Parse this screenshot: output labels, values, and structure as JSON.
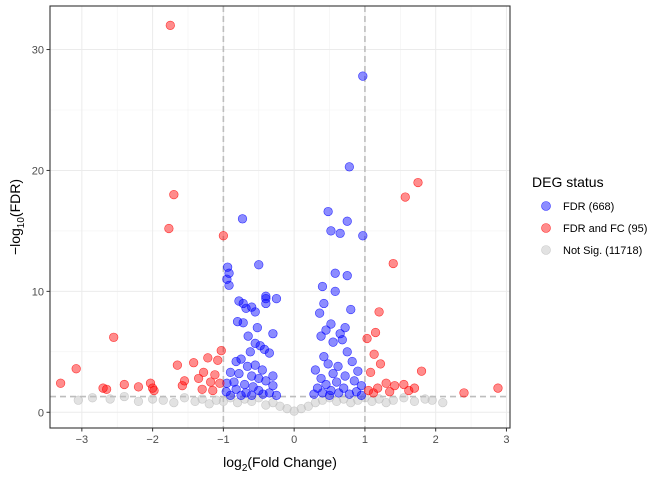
{
  "chart_data": {
    "type": "scatter",
    "title": "",
    "xlabel": {
      "base": "log",
      "sub": "2",
      "rest": "(Fold Change)"
    },
    "ylabel": {
      "prefix": "−log",
      "sub": "10",
      "rest": "(FDR)"
    },
    "xlim": [
      -3.45,
      3.05
    ],
    "ylim": [
      -1.3,
      33.6
    ],
    "x_ticks": [
      -3,
      -2,
      -1,
      0,
      1,
      2,
      3
    ],
    "y_ticks": [
      0,
      10,
      20,
      30
    ],
    "grid": true,
    "thresholds": {
      "vlines": [
        -1,
        1
      ],
      "hline": 1.3
    },
    "legend": {
      "title": "DEG status",
      "position": "right",
      "entries": [
        {
          "label": "FDR (668)",
          "color": "#0000ff"
        },
        {
          "label": "FDR and FC (95)",
          "color": "#ff0000"
        },
        {
          "label": "Not Sig. (11718)",
          "color": "#bebebe"
        }
      ]
    },
    "series": [
      {
        "name": "Not Sig. (11718)",
        "color": "#bebebe",
        "points": [
          [
            -3.05,
            1.0
          ],
          [
            -2.85,
            1.2
          ],
          [
            -2.6,
            1.1
          ],
          [
            -2.4,
            1.3
          ],
          [
            -2.2,
            0.9
          ],
          [
            -2.0,
            1.1
          ],
          [
            -1.85,
            1.0
          ],
          [
            -1.7,
            0.8
          ],
          [
            -1.55,
            1.2
          ],
          [
            -1.4,
            0.9
          ],
          [
            -1.3,
            1.1
          ],
          [
            -1.2,
            0.7
          ],
          [
            -1.1,
            1.0
          ],
          [
            -1.0,
            0.9
          ],
          [
            -0.9,
            1.2
          ],
          [
            -0.8,
            0.8
          ],
          [
            -0.7,
            1.1
          ],
          [
            -0.6,
            0.9
          ],
          [
            -0.5,
            1.2
          ],
          [
            -0.4,
            0.6
          ],
          [
            -0.3,
            0.8
          ],
          [
            -0.2,
            0.5
          ],
          [
            -0.1,
            0.3
          ],
          [
            0.0,
            0.1
          ],
          [
            0.1,
            0.3
          ],
          [
            0.2,
            0.5
          ],
          [
            0.3,
            0.8
          ],
          [
            0.4,
            1.0
          ],
          [
            0.5,
            1.2
          ],
          [
            0.6,
            0.9
          ],
          [
            0.7,
            1.1
          ],
          [
            0.8,
            0.8
          ],
          [
            0.9,
            1.0
          ],
          [
            1.0,
            1.2
          ],
          [
            1.1,
            0.9
          ],
          [
            1.2,
            1.1
          ],
          [
            1.3,
            0.8
          ],
          [
            1.4,
            1.0
          ],
          [
            1.55,
            1.2
          ],
          [
            1.7,
            0.9
          ],
          [
            1.85,
            1.1
          ],
          [
            1.95,
            1.0
          ],
          [
            2.1,
            0.8
          ]
        ]
      },
      {
        "name": "FDR (668)",
        "color": "#0000ff",
        "points": [
          [
            0.97,
            27.8
          ],
          [
            0.78,
            20.3
          ],
          [
            0.48,
            16.6
          ],
          [
            0.75,
            15.8
          ],
          [
            0.52,
            15.0
          ],
          [
            0.65,
            14.8
          ],
          [
            0.97,
            14.6
          ],
          [
            -0.73,
            16.0
          ],
          [
            -0.5,
            12.2
          ],
          [
            -0.94,
            12.0
          ],
          [
            -0.92,
            11.5
          ],
          [
            -0.95,
            11.0
          ],
          [
            -0.92,
            10.5
          ],
          [
            -0.78,
            9.2
          ],
          [
            -0.72,
            9.0
          ],
          [
            -0.68,
            8.6
          ],
          [
            -0.4,
            9.6
          ],
          [
            -0.4,
            9.0
          ],
          [
            -0.6,
            8.7
          ],
          [
            -0.55,
            8.3
          ],
          [
            -0.8,
            7.5
          ],
          [
            -0.72,
            7.4
          ],
          [
            -0.4,
            9.4
          ],
          [
            -0.25,
            9.4
          ],
          [
            -0.52,
            7.0
          ],
          [
            -0.3,
            6.5
          ],
          [
            -0.65,
            6.3
          ],
          [
            -0.55,
            5.7
          ],
          [
            -0.48,
            5.5
          ],
          [
            -0.62,
            5.0
          ],
          [
            -0.42,
            5.2
          ],
          [
            -0.35,
            4.9
          ],
          [
            -0.75,
            4.4
          ],
          [
            -0.82,
            4.2
          ],
          [
            -0.55,
            3.9
          ],
          [
            -0.66,
            3.8
          ],
          [
            -0.45,
            3.5
          ],
          [
            -0.9,
            3.3
          ],
          [
            -0.78,
            3.2
          ],
          [
            -0.3,
            3.0
          ],
          [
            -0.6,
            3.0
          ],
          [
            -0.5,
            2.8
          ],
          [
            -0.85,
            2.5
          ],
          [
            -0.95,
            2.4
          ],
          [
            -0.4,
            2.6
          ],
          [
            -0.7,
            2.3
          ],
          [
            -0.58,
            2.1
          ],
          [
            -0.3,
            2.2
          ],
          [
            -0.82,
            1.9
          ],
          [
            -0.5,
            1.8
          ],
          [
            -0.96,
            1.7
          ],
          [
            -0.68,
            1.6
          ],
          [
            -0.35,
            1.6
          ],
          [
            -0.44,
            1.5
          ],
          [
            -0.9,
            1.4
          ],
          [
            -0.75,
            1.4
          ],
          [
            -0.6,
            1.4
          ],
          [
            -0.25,
            1.4
          ],
          [
            0.58,
            11.5
          ],
          [
            0.75,
            11.3
          ],
          [
            0.4,
            10.4
          ],
          [
            0.58,
            10.0
          ],
          [
            0.42,
            9.0
          ],
          [
            0.8,
            8.5
          ],
          [
            0.36,
            8.2
          ],
          [
            0.52,
            7.3
          ],
          [
            0.72,
            7.0
          ],
          [
            0.45,
            6.8
          ],
          [
            0.65,
            6.5
          ],
          [
            0.38,
            6.3
          ],
          [
            0.68,
            6.0
          ],
          [
            0.55,
            5.8
          ],
          [
            0.75,
            5.0
          ],
          [
            0.42,
            4.6
          ],
          [
            0.82,
            4.2
          ],
          [
            0.48,
            4.0
          ],
          [
            0.62,
            3.8
          ],
          [
            0.3,
            3.5
          ],
          [
            0.9,
            3.4
          ],
          [
            0.55,
            3.2
          ],
          [
            0.72,
            3.0
          ],
          [
            0.38,
            2.8
          ],
          [
            0.85,
            2.6
          ],
          [
            0.6,
            2.5
          ],
          [
            0.45,
            2.3
          ],
          [
            0.95,
            2.2
          ],
          [
            0.33,
            2.0
          ],
          [
            0.7,
            2.0
          ],
          [
            0.52,
            1.8
          ],
          [
            0.88,
            1.7
          ],
          [
            0.4,
            1.6
          ],
          [
            0.63,
            1.6
          ],
          [
            0.78,
            1.5
          ],
          [
            0.28,
            1.5
          ],
          [
            0.95,
            1.4
          ],
          [
            0.5,
            1.4
          ]
        ]
      },
      {
        "name": "FDR and FC (95)",
        "color": "#ff0000",
        "points": [
          [
            -1.75,
            32.0
          ],
          [
            -1.7,
            18.0
          ],
          [
            -1.77,
            15.2
          ],
          [
            -1.0,
            14.6
          ],
          [
            -2.55,
            6.2
          ],
          [
            -3.08,
            3.6
          ],
          [
            -3.3,
            2.4
          ],
          [
            -2.7,
            2.0
          ],
          [
            -2.65,
            1.9
          ],
          [
            -2.4,
            2.3
          ],
          [
            -2.2,
            2.1
          ],
          [
            -2.03,
            2.4
          ],
          [
            -2.0,
            2.0
          ],
          [
            -1.98,
            1.8
          ],
          [
            -1.65,
            3.9
          ],
          [
            -1.58,
            2.2
          ],
          [
            -1.55,
            2.6
          ],
          [
            -1.42,
            4.1
          ],
          [
            -1.35,
            2.8
          ],
          [
            -1.3,
            1.9
          ],
          [
            -1.28,
            3.3
          ],
          [
            -1.22,
            4.5
          ],
          [
            -1.18,
            2.5
          ],
          [
            -1.15,
            1.8
          ],
          [
            -1.12,
            3.1
          ],
          [
            -1.08,
            4.3
          ],
          [
            -1.05,
            2.4
          ],
          [
            -1.03,
            5.1
          ],
          [
            1.75,
            19.0
          ],
          [
            1.57,
            17.8
          ],
          [
            1.4,
            12.3
          ],
          [
            1.2,
            8.3
          ],
          [
            1.15,
            6.6
          ],
          [
            1.03,
            6.1
          ],
          [
            1.8,
            3.4
          ],
          [
            2.4,
            1.6
          ],
          [
            2.88,
            2.0
          ],
          [
            1.13,
            4.8
          ],
          [
            1.22,
            4.0
          ],
          [
            1.08,
            3.3
          ],
          [
            1.3,
            2.4
          ],
          [
            1.42,
            2.2
          ],
          [
            1.55,
            2.3
          ],
          [
            1.62,
            1.8
          ],
          [
            1.18,
            2.0
          ],
          [
            1.05,
            1.8
          ],
          [
            1.35,
            1.7
          ],
          [
            1.7,
            2.0
          ],
          [
            1.12,
            1.6
          ]
        ]
      }
    ]
  }
}
